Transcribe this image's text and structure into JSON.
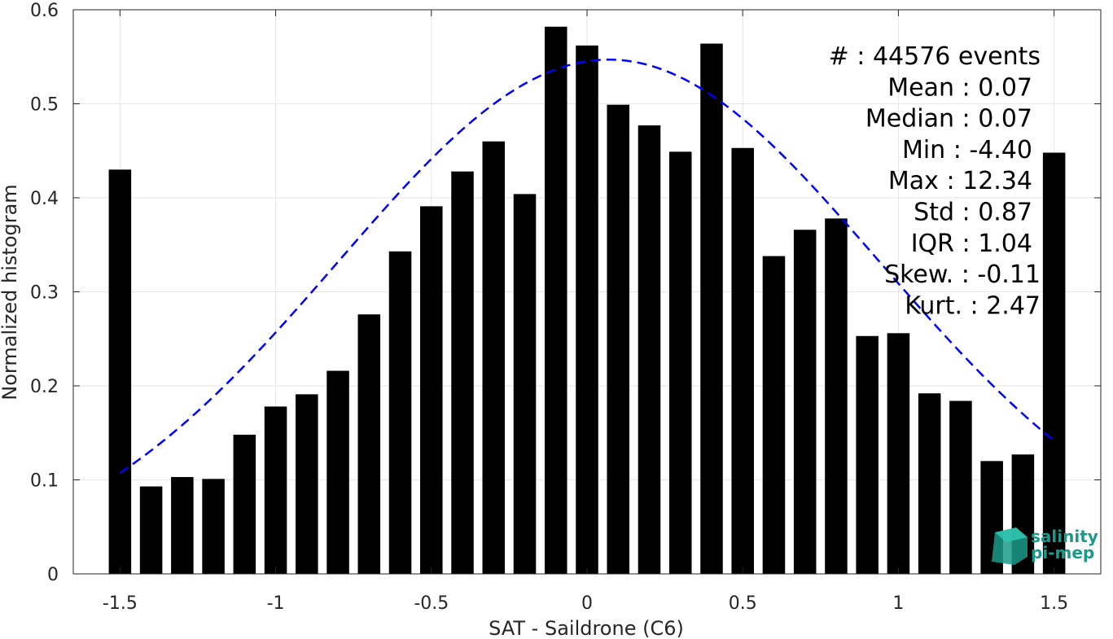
{
  "chart_data": {
    "type": "bar",
    "xlabel": "SAT - Saildrone (C6)",
    "ylabel": "Normalized histogram",
    "xlim": [
      -1.65,
      1.65
    ],
    "ylim": [
      0,
      0.6
    ],
    "xticks": [
      -1.5,
      -1,
      -0.5,
      0,
      0.5,
      1,
      1.5
    ],
    "xtick_labels": [
      "-1.5",
      "-1",
      "-0.5",
      "0",
      "0.5",
      "1",
      "1.5"
    ],
    "yticks": [
      0,
      0.1,
      0.2,
      0.3,
      0.4,
      0.5,
      0.6
    ],
    "ytick_labels": [
      "0",
      "0.1",
      "0.2",
      "0.3",
      "0.4",
      "0.5",
      "0.6"
    ],
    "grid": true,
    "bin_width": 0.1,
    "bar_color": "#000000",
    "x": [
      -1.5,
      -1.4,
      -1.3,
      -1.2,
      -1.1,
      -1.0,
      -0.9,
      -0.8,
      -0.7,
      -0.6,
      -0.5,
      -0.4,
      -0.3,
      -0.2,
      -0.1,
      0.0,
      0.1,
      0.2,
      0.3,
      0.4,
      0.5,
      0.6,
      0.7,
      0.8,
      0.9,
      1.0,
      1.1,
      1.2,
      1.3,
      1.4,
      1.5
    ],
    "values": [
      0.43,
      0.093,
      0.103,
      0.101,
      0.148,
      0.178,
      0.191,
      0.216,
      0.276,
      0.343,
      0.391,
      0.428,
      0.46,
      0.404,
      0.582,
      0.562,
      0.499,
      0.477,
      0.449,
      0.564,
      0.453,
      0.338,
      0.366,
      0.378,
      0.253,
      0.256,
      0.192,
      0.184,
      0.12,
      0.127,
      0.448
    ],
    "fit_curve": {
      "style": "dashed",
      "color": "#0000ff",
      "x_range": [
        -1.5,
        1.5
      ],
      "peak_x": 0.07,
      "peak_y": 0.547,
      "std": 0.87
    },
    "stats": [
      {
        "key": "#  ",
        "value": "44576 events"
      },
      {
        "key": "Mean",
        "value": "0.07"
      },
      {
        "key": "Median",
        "value": "0.07"
      },
      {
        "key": "Min",
        "value": "-4.40"
      },
      {
        "key": "Max",
        "value": "12.34"
      },
      {
        "key": "Std",
        "value": "0.87"
      },
      {
        "key": "IQR",
        "value": "1.04"
      },
      {
        "key": "Skew.",
        "value": "-0.11"
      },
      {
        "key": "Kurt.",
        "value": "2.47"
      }
    ],
    "stats_lines": [
      "#  : 44576 events",
      "Mean : 0.07",
      "Median : 0.07",
      "Min : -4.40",
      "Max : 12.34",
      "Std : 0.87",
      "IQR : 1.04",
      "Skew. : -0.11",
      "Kurt. : 2.47"
    ]
  },
  "logo": {
    "line1": "salinity",
    "line2": "pi-mep",
    "color": "#1a9a8a"
  }
}
